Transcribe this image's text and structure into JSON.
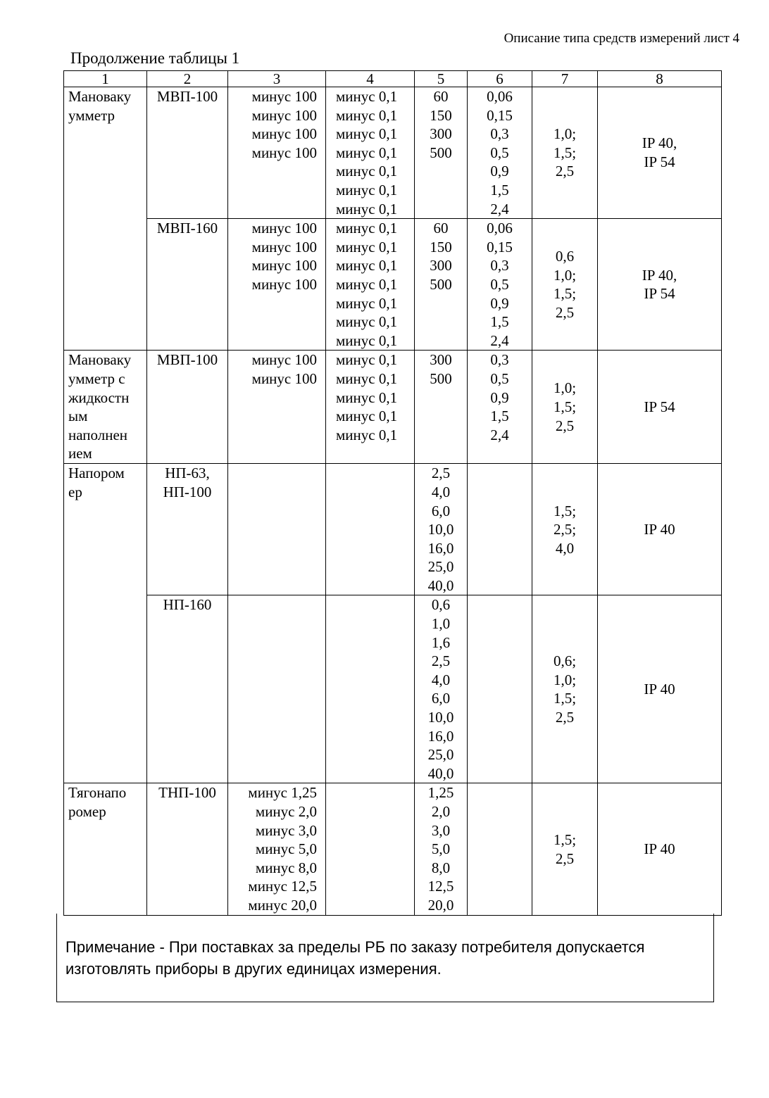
{
  "header": "Описание типа средств измерений лист 4",
  "caption": "Продолжение таблицы 1",
  "columns": [
    "1",
    "2",
    "3",
    "4",
    "5",
    "6",
    "7",
    "8"
  ],
  "rows": [
    {
      "c1": [
        "Мановаку",
        "умметр"
      ],
      "c1span": 2,
      "c2": [
        "МВП-100"
      ],
      "c3": [
        "минус 100",
        "минус 100",
        "минус 100",
        "минус 100"
      ],
      "c4": [
        "минус 0,1",
        "минус 0,1",
        "минус 0,1",
        "минус 0,1",
        "минус 0,1",
        "минус 0,1",
        "минус 0,1"
      ],
      "c5": [
        "60",
        "150",
        "300",
        "500"
      ],
      "c6": [
        "0,06",
        "0,15",
        "0,3",
        "0,5",
        "0,9",
        "1,5",
        "2,4"
      ],
      "c7": [
        "1,0;",
        "1,5;",
        "2,5"
      ],
      "c8": [
        "IP 40,",
        "IP 54"
      ]
    },
    {
      "c2": [
        "МВП-160"
      ],
      "c3": [
        "минус 100",
        "минус 100",
        "минус 100",
        "минус 100"
      ],
      "c4": [
        "минус 0,1",
        "минус 0,1",
        "минус 0,1",
        "минус 0,1",
        "минус 0,1",
        "минус 0,1",
        "минус 0,1"
      ],
      "c5": [
        "60",
        "150",
        "300",
        "500"
      ],
      "c6": [
        "0,06",
        "0,15",
        "0,3",
        "0,5",
        "0,9",
        "1,5",
        "2,4"
      ],
      "c7": [
        "0,6",
        "1,0;",
        "1,5;",
        "2,5"
      ],
      "c8": [
        "IP 40,",
        "IP 54"
      ]
    },
    {
      "c1": [
        "Мановаку",
        "умметр с",
        "жидкостн",
        "ым",
        "наполнен",
        "ием"
      ],
      "c1span": 1,
      "c2": [
        "МВП-100"
      ],
      "c3": [
        "минус 100",
        "минус 100"
      ],
      "c4": [
        "минус 0,1",
        "минус 0,1",
        "минус 0,1",
        "минус 0,1",
        "минус 0,1"
      ],
      "c5": [
        "300",
        "500"
      ],
      "c6": [
        "0,3",
        "0,5",
        "0,9",
        "1,5",
        "2,4"
      ],
      "c7": [
        "1,0;",
        "1,5;",
        "2,5"
      ],
      "c8": [
        "IP 54"
      ]
    },
    {
      "c1": [
        "Напором",
        "ер"
      ],
      "c1span": 2,
      "c2": [
        "НП-63,",
        "НП-100"
      ],
      "c3": [],
      "c4": [],
      "c5": [
        "2,5",
        "4,0",
        "6,0",
        "10,0",
        "16,0",
        "25,0",
        "40,0"
      ],
      "c6": [],
      "c7": [
        "1,5;",
        "2,5;",
        "4,0"
      ],
      "c8": [
        "IP 40"
      ]
    },
    {
      "c2": [
        "НП-160"
      ],
      "c3": [],
      "c4": [],
      "c5": [
        "0,6",
        "1,0",
        "1,6",
        "2,5",
        "4,0",
        "6,0",
        "10,0",
        "16,0",
        "25,0",
        "40,0"
      ],
      "c6": [],
      "c7": [
        "0,6;",
        "1,0;",
        "1,5;",
        "2,5"
      ],
      "c8": [
        "IP 40"
      ]
    },
    {
      "c1": [
        "Тягонапо",
        "ромер"
      ],
      "c1span": 1,
      "c2": [
        "ТНП-100"
      ],
      "c3": [
        "минус 1,25",
        "минус 2,0",
        "минус 3,0",
        "минус 5,0",
        "минус 8,0",
        "минус 12,5",
        "минус 20,0"
      ],
      "c4": [],
      "c5": [
        "1,25",
        "2,0",
        "3,0",
        "5,0",
        "8,0",
        "12,5",
        "20,0"
      ],
      "c6": [],
      "c7": [
        "1,5;",
        "2,5"
      ],
      "c8": [
        "IP 40"
      ]
    }
  ],
  "note": "Примечание - При поставках за пределы РБ по заказу потребителя допускается изготовлять приборы в других единицах измерения."
}
